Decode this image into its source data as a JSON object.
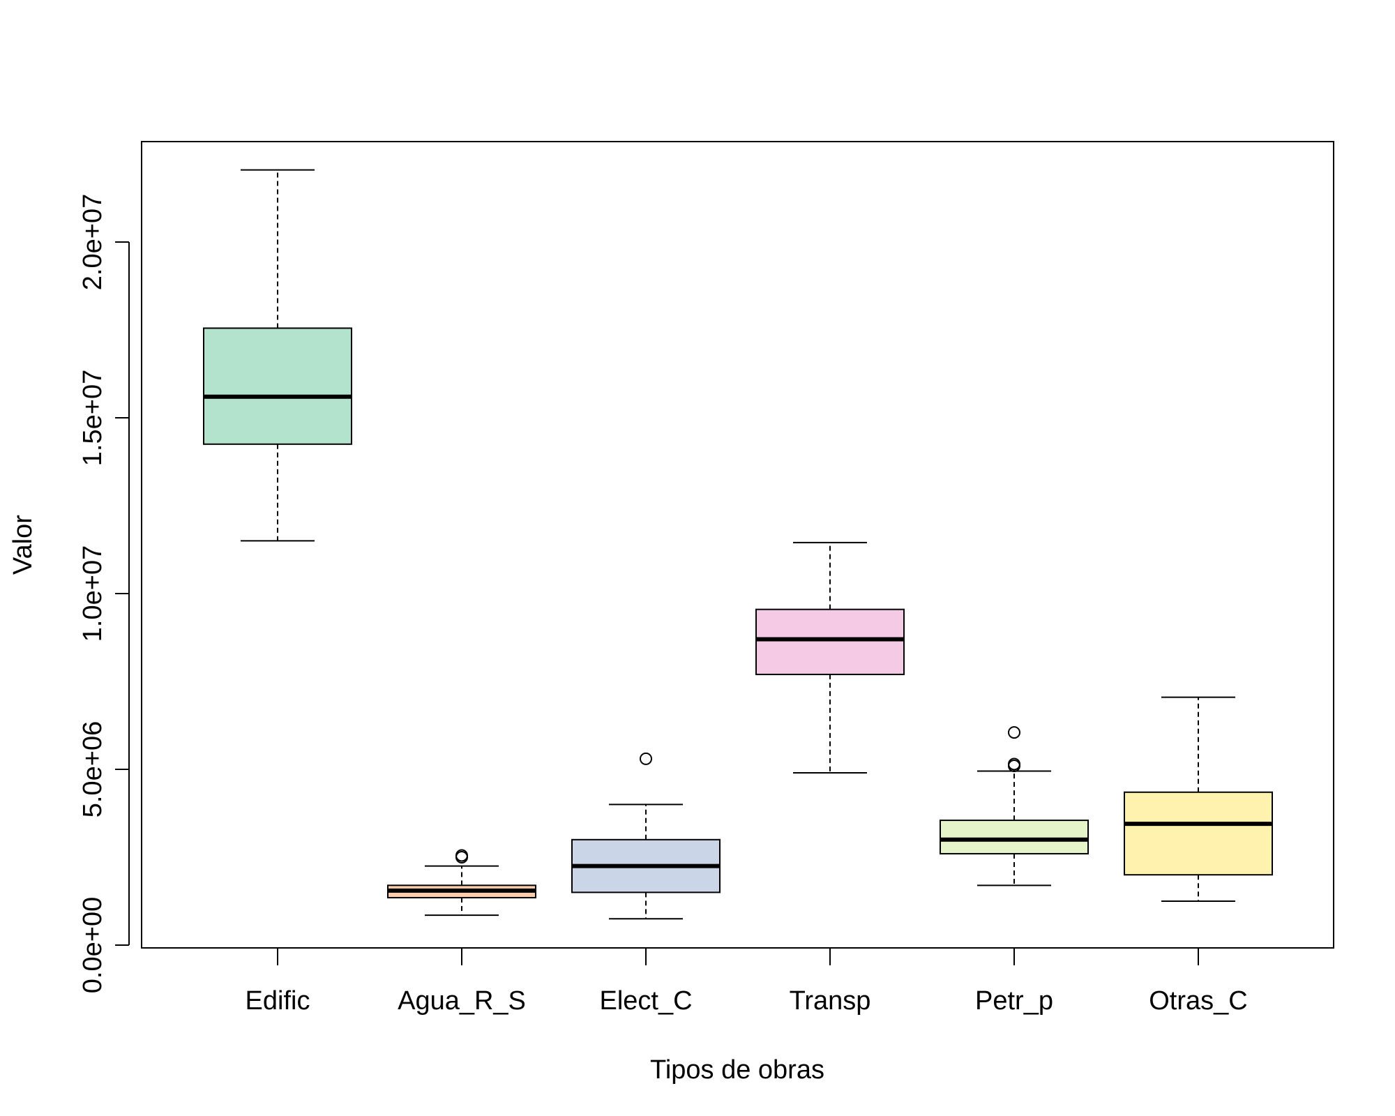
{
  "chart_data": {
    "type": "boxplot",
    "title": "",
    "xlabel": "Tipos de obras",
    "ylabel": "Valor",
    "ylim": [
      -100000,
      22900000
    ],
    "y_ticks": [
      0,
      5000000,
      10000000,
      15000000,
      20000000
    ],
    "y_tick_labels": [
      "0.0e+00",
      "5.0e+06",
      "1.0e+07",
      "1.5e+07",
      "2.0e+07"
    ],
    "grid": false,
    "categories": [
      "Edific",
      "Agua_R_S",
      "Elect_C",
      "Transp",
      "Petr_p",
      "Otras_C"
    ],
    "boxes": [
      {
        "name": "Edific",
        "color": "#B3E2CD",
        "whisker_low": 11500000,
        "q1": 14250000,
        "median": 15600000,
        "q3": 17550000,
        "whisker_high": 22050000,
        "outliers": []
      },
      {
        "name": "Agua_R_S",
        "color": "#FDCDAC",
        "whisker_low": 850000,
        "q1": 1350000,
        "median": 1550000,
        "q3": 1700000,
        "whisker_high": 2250000,
        "outliers": [
          2500000,
          2550000
        ]
      },
      {
        "name": "Elect_C",
        "color": "#CBD5E8",
        "whisker_low": 750000,
        "q1": 1500000,
        "median": 2250000,
        "q3": 3000000,
        "whisker_high": 4000000,
        "outliers": [
          5300000
        ]
      },
      {
        "name": "Transp",
        "color": "#F4CAE4",
        "whisker_low": 4900000,
        "q1": 7700000,
        "median": 8700000,
        "q3": 9550000,
        "whisker_high": 11450000,
        "outliers": []
      },
      {
        "name": "Petr_p",
        "color": "#E6F5C9",
        "whisker_low": 1700000,
        "q1": 2600000,
        "median": 3000000,
        "q3": 3550000,
        "whisker_high": 4950000,
        "outliers": [
          5100000,
          5150000,
          6050000
        ]
      },
      {
        "name": "Otras_C",
        "color": "#FFF2AE",
        "whisker_low": 1250000,
        "q1": 2000000,
        "median": 3450000,
        "q3": 4350000,
        "whisker_high": 7050000,
        "outliers": []
      }
    ]
  }
}
